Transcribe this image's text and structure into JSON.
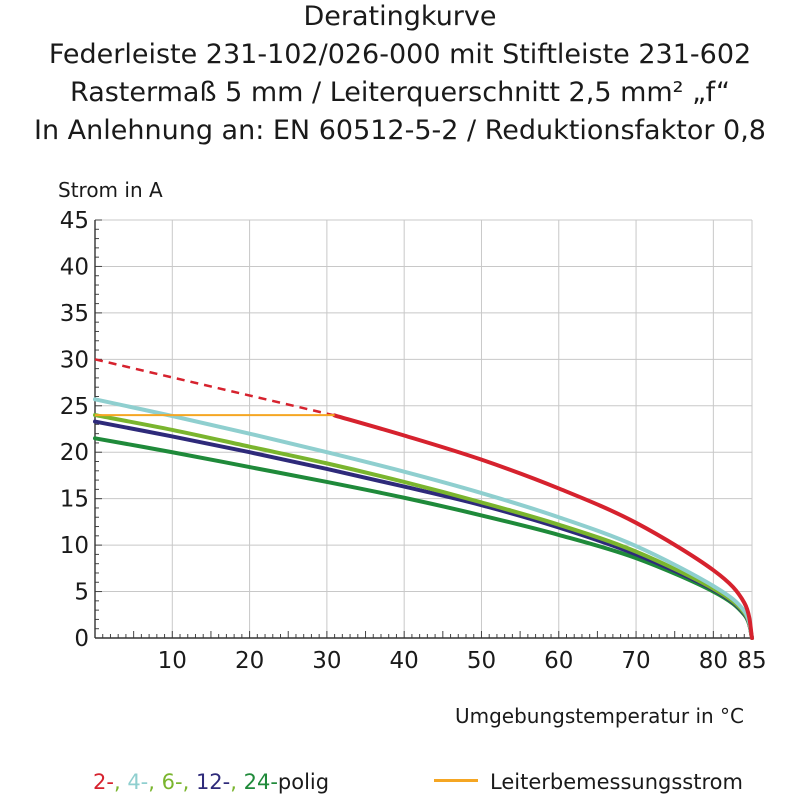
{
  "chart_data": {
    "type": "line",
    "title": "Deratingkurve",
    "subtitle": [
      "Federleiste 231-102/026-000 mit Stiftleiste 231-602",
      "Rastermaß 5 mm / Leiterquerschnitt 2,5 mm² „f“",
      "In Anlehnung an: EN 60512-5-2 / Reduktionsfaktor 0,8"
    ],
    "ylabel": "Strom in A",
    "xlabel": "Umgebungstemperatur in °C",
    "xlim": [
      0,
      85
    ],
    "ylim": [
      0,
      45
    ],
    "x_ticks": [
      10,
      20,
      30,
      40,
      50,
      60,
      70,
      80,
      85
    ],
    "y_ticks": [
      0,
      5,
      10,
      15,
      20,
      25,
      30,
      35,
      40,
      45
    ],
    "grid": true,
    "series": [
      {
        "name": "24-",
        "color": "#1f8a3a",
        "x": [
          0,
          10,
          20,
          30,
          40,
          50,
          60,
          70,
          80,
          84,
          85
        ],
        "y": [
          21.5,
          20.0,
          18.4,
          16.8,
          15.1,
          13.2,
          11.1,
          8.6,
          5.0,
          2.5,
          0
        ]
      },
      {
        "name": "12-",
        "color": "#2e2a7a",
        "x": [
          0,
          10,
          20,
          30,
          40,
          50,
          60,
          70,
          80,
          84,
          85
        ],
        "y": [
          23.3,
          21.7,
          20.0,
          18.2,
          16.3,
          14.3,
          11.9,
          9.0,
          5.2,
          2.6,
          0
        ]
      },
      {
        "name": "6-",
        "color": "#7ab52e",
        "x": [
          0,
          10,
          20,
          30,
          40,
          50,
          60,
          70,
          80,
          84,
          85
        ],
        "y": [
          24.0,
          22.4,
          20.6,
          18.8,
          16.8,
          14.6,
          12.2,
          9.3,
          5.3,
          2.7,
          0
        ]
      },
      {
        "name": "4-",
        "color": "#8fcfcf",
        "x": [
          0,
          10,
          20,
          30,
          40,
          50,
          60,
          70,
          80,
          84,
          85
        ],
        "y": [
          25.7,
          23.9,
          22.0,
          20.0,
          17.9,
          15.6,
          13.0,
          9.9,
          5.6,
          2.9,
          0
        ]
      },
      {
        "name": "2-",
        "color": "#d6222e",
        "x": [
          0,
          10,
          20,
          30,
          40,
          50,
          60,
          70,
          80,
          84,
          85
        ],
        "y": [
          30.0,
          28.0,
          26.0,
          24.2,
          21.8,
          19.2,
          16.1,
          12.4,
          7.3,
          3.8,
          0
        ],
        "dashed_until_x": 31
      },
      {
        "name": "Leiterbemessungsstrom",
        "color": "#f5a623",
        "x": [
          0,
          31
        ],
        "y": [
          24,
          24
        ]
      }
    ],
    "legend_left": {
      "items": [
        {
          "text": "2-",
          "color": "#d6222e"
        },
        {
          "text": ", ",
          "color": "#7ab52e"
        },
        {
          "text": "4-",
          "color": "#8fcfcf"
        },
        {
          "text": ", ",
          "color": "#7ab52e"
        },
        {
          "text": "6-",
          "color": "#7ab52e"
        },
        {
          "text": ", ",
          "color": "#7ab52e"
        },
        {
          "text": "12-",
          "color": "#2e2a7a"
        },
        {
          "text": ", ",
          "color": "#7ab52e"
        },
        {
          "text": "24-",
          "color": "#1f8a3a"
        },
        {
          "text": "polig",
          "color": "#1a1a1a"
        }
      ]
    },
    "legend_right": {
      "text": "Leiterbemessungsstrom",
      "color": "#f5a623"
    }
  }
}
